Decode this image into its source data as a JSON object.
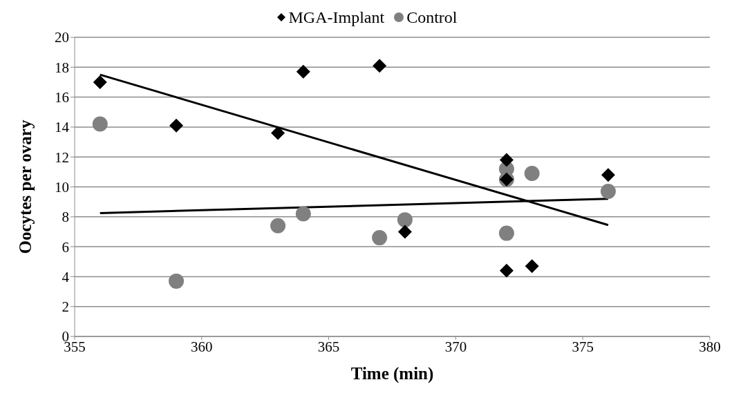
{
  "chart_data": {
    "type": "scatter",
    "xlabel": "Time (min)",
    "ylabel": "Oocytes per ovary",
    "xlim": [
      355,
      380
    ],
    "xticks": [
      355,
      360,
      365,
      370,
      375,
      380
    ],
    "ylim": [
      0,
      20
    ],
    "yticks": [
      0,
      2,
      4,
      6,
      8,
      10,
      12,
      14,
      16,
      18,
      20
    ],
    "grid": "y",
    "legend": "top",
    "series": [
      {
        "name": "MGA-Implant",
        "color": "#000000",
        "marker": "diamond",
        "x": [
          356,
          359,
          363,
          364,
          367,
          368,
          372,
          372,
          372,
          373,
          376
        ],
        "values": [
          17.0,
          14.1,
          13.6,
          17.7,
          18.1,
          7.0,
          11.8,
          10.5,
          4.4,
          4.7,
          10.8
        ]
      },
      {
        "name": "Control",
        "color": "#808080",
        "marker": "circle",
        "x": [
          356,
          359,
          363,
          364,
          367,
          368,
          372,
          372,
          372,
          373,
          376
        ],
        "values": [
          14.2,
          3.7,
          7.4,
          8.2,
          6.6,
          7.8,
          11.2,
          10.5,
          6.9,
          10.9,
          9.7
        ]
      },
      {
        "type": "line",
        "color": "#000000",
        "marker": "none",
        "line_style": "solid",
        "x": [
          356,
          376
        ],
        "values": [
          17.5,
          7.45
        ]
      },
      {
        "type": "line",
        "color": "#000000",
        "marker": "none",
        "line_style": "solid",
        "x": [
          356,
          376
        ],
        "values": [
          8.25,
          9.2
        ]
      }
    ]
  }
}
